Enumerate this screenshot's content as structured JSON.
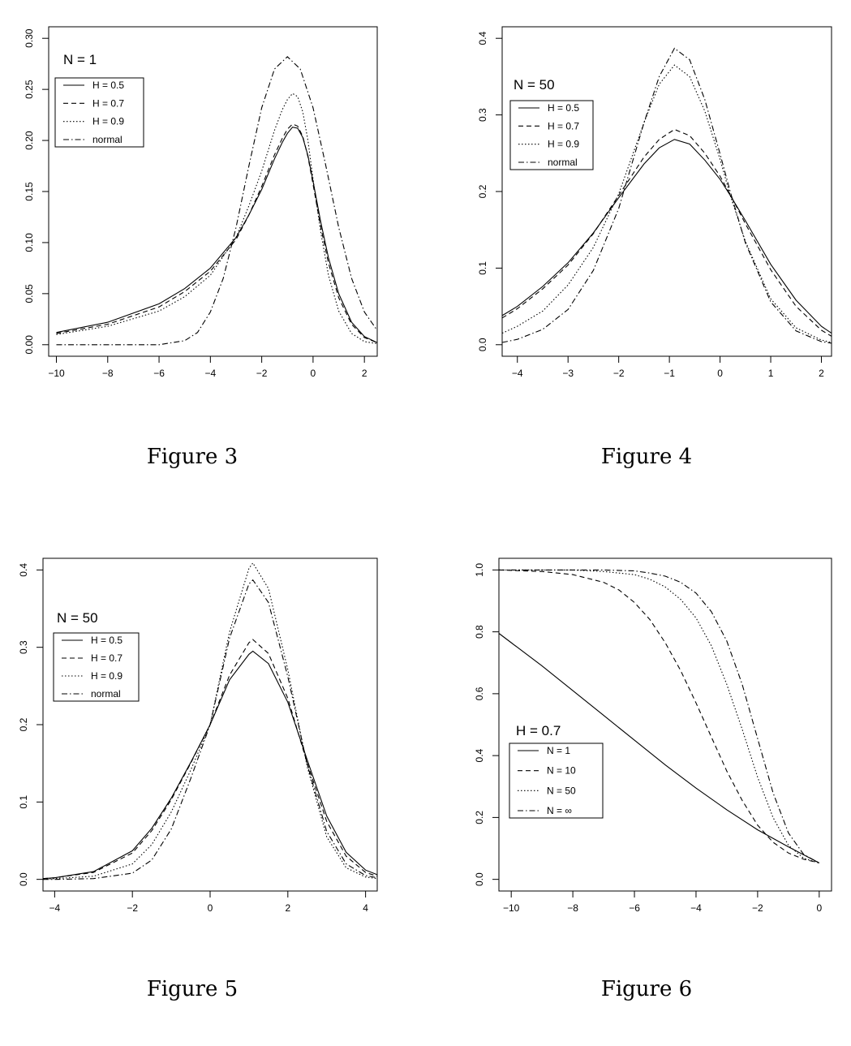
{
  "captions": [
    "Figure 3",
    "Figure 4",
    "Figure 5",
    "Figure 6"
  ],
  "chart_data": [
    {
      "type": "line",
      "title": "N = 1",
      "xlim": [
        -10.3,
        2.5
      ],
      "ylim": [
        0,
        0.3
      ],
      "xticks": [
        -10,
        -8,
        -6,
        -4,
        -2,
        0,
        2
      ],
      "yticks": [
        0.0,
        0.05,
        0.1,
        0.15,
        0.2,
        0.25,
        0.3
      ],
      "ytick_labels": [
        "0.00",
        "0.05",
        "0.10",
        "0.15",
        "0.20",
        "0.25",
        "0.30"
      ],
      "legend": "top-left",
      "series": [
        {
          "name": "H = 0.5",
          "style": "solid",
          "x": [
            -10,
            -8,
            -6,
            -5,
            -4,
            -3,
            -2.5,
            -2,
            -1.5,
            -1.2,
            -1,
            -0.8,
            -0.6,
            -0.4,
            -0.2,
            0,
            0.3,
            0.6,
            1,
            1.5,
            2,
            2.5
          ],
          "y": [
            0.012,
            0.022,
            0.04,
            0.055,
            0.075,
            0.105,
            0.127,
            0.152,
            0.182,
            0.198,
            0.207,
            0.213,
            0.212,
            0.203,
            0.185,
            0.16,
            0.12,
            0.085,
            0.05,
            0.022,
            0.008,
            0.002
          ]
        },
        {
          "name": "H = 0.7",
          "style": "dashed",
          "x": [
            -10,
            -8,
            -6,
            -5,
            -4,
            -3,
            -2.5,
            -2,
            -1.5,
            -1.2,
            -1,
            -0.8,
            -0.6,
            -0.4,
            -0.2,
            0,
            0.3,
            0.6,
            1,
            1.5,
            2,
            2.5
          ],
          "y": [
            0.011,
            0.02,
            0.037,
            0.052,
            0.072,
            0.103,
            0.127,
            0.155,
            0.186,
            0.202,
            0.211,
            0.216,
            0.214,
            0.204,
            0.184,
            0.157,
            0.115,
            0.08,
            0.046,
            0.02,
            0.007,
            0.002
          ]
        },
        {
          "name": "H = 0.9",
          "style": "dotted",
          "x": [
            -10,
            -8,
            -6,
            -5,
            -4,
            -3,
            -2.5,
            -2,
            -1.5,
            -1.2,
            -1,
            -0.8,
            -0.6,
            -0.4,
            -0.2,
            0,
            0.3,
            0.6,
            1,
            1.5,
            2,
            2.5
          ],
          "y": [
            0.01,
            0.018,
            0.033,
            0.047,
            0.068,
            0.105,
            0.136,
            0.17,
            0.21,
            0.23,
            0.24,
            0.246,
            0.243,
            0.228,
            0.2,
            0.162,
            0.11,
            0.068,
            0.033,
            0.011,
            0.003,
            0.001
          ]
        },
        {
          "name": "normal",
          "style": "dotdash",
          "x": [
            -10,
            -7,
            -6,
            -5,
            -4.5,
            -4,
            -3.5,
            -3,
            -2.5,
            -2,
            -1.5,
            -1,
            -0.5,
            0,
            0.5,
            1,
            1.5,
            2,
            2.5
          ],
          "y": [
            0.0,
            0.0,
            0.0,
            0.004,
            0.012,
            0.032,
            0.065,
            0.115,
            0.175,
            0.232,
            0.27,
            0.282,
            0.27,
            0.232,
            0.175,
            0.115,
            0.065,
            0.032,
            0.014
          ]
        }
      ]
    },
    {
      "type": "line",
      "title": "N = 50",
      "xlim": [
        -4.3,
        2.2
      ],
      "ylim": [
        0,
        0.4
      ],
      "xticks": [
        -4,
        -3,
        -2,
        -1,
        0,
        1,
        2
      ],
      "yticks": [
        0.0,
        0.1,
        0.2,
        0.3,
        0.4
      ],
      "ytick_labels": [
        "0.0",
        "0.1",
        "0.2",
        "0.3",
        "0.4"
      ],
      "legend": "top-left",
      "series": [
        {
          "name": "H = 0.5",
          "style": "solid",
          "x": [
            -4.3,
            -4,
            -3.5,
            -3,
            -2.5,
            -2,
            -1.5,
            -1.2,
            -0.9,
            -0.6,
            -0.3,
            0,
            0.2,
            0.5,
            1,
            1.5,
            2,
            2.2
          ],
          "y": [
            0.038,
            0.05,
            0.076,
            0.107,
            0.146,
            0.192,
            0.236,
            0.257,
            0.268,
            0.262,
            0.241,
            0.216,
            0.195,
            0.162,
            0.105,
            0.058,
            0.024,
            0.015
          ]
        },
        {
          "name": "H = 0.7",
          "style": "dashed",
          "x": [
            -4.3,
            -4,
            -3.5,
            -3,
            -2.5,
            -2,
            -1.5,
            -1.2,
            -0.9,
            -0.6,
            -0.3,
            0,
            0.2,
            0.5,
            1,
            1.5,
            2,
            2.2
          ],
          "y": [
            0.035,
            0.047,
            0.073,
            0.104,
            0.145,
            0.195,
            0.245,
            0.268,
            0.281,
            0.273,
            0.25,
            0.22,
            0.196,
            0.158,
            0.098,
            0.05,
            0.019,
            0.011
          ]
        },
        {
          "name": "H = 0.9",
          "style": "dotted",
          "x": [
            -4.3,
            -4,
            -3.5,
            -3,
            -2.5,
            -2,
            -1.5,
            -1.2,
            -0.9,
            -0.6,
            -0.3,
            0,
            0.2,
            0.5,
            1,
            1.5,
            2,
            2.2
          ],
          "y": [
            0.015,
            0.024,
            0.044,
            0.078,
            0.127,
            0.197,
            0.29,
            0.34,
            0.365,
            0.35,
            0.305,
            0.242,
            0.195,
            0.135,
            0.06,
            0.022,
            0.006,
            0.003
          ]
        },
        {
          "name": "normal",
          "style": "dotdash",
          "x": [
            -4.3,
            -4,
            -3.5,
            -3,
            -2.5,
            -2,
            -1.5,
            -1.2,
            -0.9,
            -0.6,
            -0.3,
            0,
            0.2,
            0.5,
            1,
            1.5,
            2,
            2.2
          ],
          "y": [
            0.003,
            0.007,
            0.02,
            0.046,
            0.097,
            0.178,
            0.29,
            0.35,
            0.387,
            0.372,
            0.32,
            0.249,
            0.2,
            0.133,
            0.056,
            0.018,
            0.004,
            0.002
          ]
        }
      ]
    },
    {
      "type": "line",
      "title": "N = 50",
      "xlim": [
        -4.3,
        4.3
      ],
      "ylim": [
        0,
        0.4
      ],
      "xticks": [
        -4,
        -2,
        0,
        2,
        4
      ],
      "yticks": [
        0.0,
        0.1,
        0.2,
        0.3,
        0.4
      ],
      "ytick_labels": [
        "0.0",
        "0.1",
        "0.2",
        "0.3",
        "0.4"
      ],
      "legend": "top-left",
      "series": [
        {
          "name": "H = 0.5",
          "style": "solid",
          "x": [
            -4.3,
            -4,
            -3,
            -2,
            -1.5,
            -1,
            -0.5,
            0,
            0.5,
            1,
            1.1,
            1.5,
            2,
            2.5,
            3,
            3.5,
            4,
            4.3
          ],
          "y": [
            0.001,
            0.002,
            0.01,
            0.037,
            0.066,
            0.105,
            0.151,
            0.2,
            0.258,
            0.291,
            0.295,
            0.279,
            0.229,
            0.154,
            0.082,
            0.035,
            0.012,
            0.006
          ]
        },
        {
          "name": "H = 0.7",
          "style": "dashed",
          "x": [
            -4.3,
            -4,
            -3,
            -2,
            -1.5,
            -1,
            -0.5,
            0,
            0.5,
            1,
            1.1,
            1.5,
            2,
            2.5,
            3,
            3.5,
            4,
            4.3
          ],
          "y": [
            0.001,
            0.002,
            0.009,
            0.034,
            0.063,
            0.103,
            0.15,
            0.2,
            0.264,
            0.306,
            0.31,
            0.292,
            0.234,
            0.15,
            0.075,
            0.03,
            0.009,
            0.004
          ]
        },
        {
          "name": "H = 0.9",
          "style": "dotted",
          "x": [
            -4.3,
            -4,
            -3,
            -2,
            -1.5,
            -1,
            -0.5,
            0,
            0.5,
            1,
            1.1,
            1.5,
            2,
            2.5,
            3,
            3.5,
            4,
            4.3
          ],
          "y": [
            0.0,
            0.001,
            0.004,
            0.02,
            0.045,
            0.087,
            0.141,
            0.2,
            0.32,
            0.402,
            0.409,
            0.376,
            0.271,
            0.145,
            0.055,
            0.015,
            0.003,
            0.001
          ]
        },
        {
          "name": "normal",
          "style": "dotdash",
          "x": [
            -4.3,
            -4,
            -3,
            -2,
            -1.5,
            -1,
            -0.5,
            0,
            0.5,
            1,
            1.1,
            1.5,
            2,
            2.5,
            3,
            3.5,
            4,
            4.3
          ],
          "y": [
            0.0,
            0.0,
            0.001,
            0.008,
            0.025,
            0.065,
            0.13,
            0.2,
            0.312,
            0.382,
            0.387,
            0.358,
            0.262,
            0.148,
            0.062,
            0.02,
            0.005,
            0.002
          ]
        }
      ]
    },
    {
      "type": "line",
      "title": "H = 0.7",
      "xlim": [
        -10.4,
        0.4
      ],
      "ylim": [
        0,
        1.0
      ],
      "xticks": [
        -10,
        -8,
        -6,
        -4,
        -2,
        0
      ],
      "yticks": [
        0.0,
        0.2,
        0.4,
        0.6,
        0.8,
        1.0
      ],
      "ytick_labels": [
        "0.0",
        "0.2",
        "0.4",
        "0.6",
        "0.8",
        "1.0"
      ],
      "legend": "bottom-left",
      "series": [
        {
          "name": "N = 1",
          "style": "solid",
          "x": [
            -10.4,
            -10,
            -9,
            -8,
            -7,
            -6,
            -5,
            -4,
            -3,
            -2,
            -1,
            0
          ],
          "y": [
            0.795,
            0.765,
            0.69,
            0.61,
            0.53,
            0.45,
            0.37,
            0.295,
            0.225,
            0.16,
            0.105,
            0.053
          ]
        },
        {
          "name": "N = 10",
          "style": "dashed",
          "x": [
            -10.4,
            -9,
            -8,
            -7,
            -6.5,
            -6,
            -5.5,
            -5,
            -4.5,
            -4,
            -3.5,
            -3,
            -2.5,
            -2,
            -1.5,
            -1,
            -0.5,
            0
          ],
          "y": [
            1.0,
            0.995,
            0.985,
            0.96,
            0.935,
            0.895,
            0.84,
            0.765,
            0.675,
            0.57,
            0.46,
            0.35,
            0.255,
            0.175,
            0.12,
            0.085,
            0.065,
            0.053
          ]
        },
        {
          "name": "N = 50",
          "style": "dotted",
          "x": [
            -10.4,
            -8,
            -7,
            -6,
            -5.5,
            -5,
            -4.5,
            -4,
            -3.5,
            -3,
            -2.5,
            -2,
            -1.5,
            -1,
            -0.5,
            0
          ],
          "y": [
            1.0,
            1.0,
            0.995,
            0.985,
            0.97,
            0.945,
            0.905,
            0.845,
            0.755,
            0.63,
            0.485,
            0.33,
            0.2,
            0.11,
            0.068,
            0.053
          ]
        },
        {
          "name": "N = ∞",
          "style": "dotdash",
          "x": [
            -10.4,
            -7,
            -6,
            -5.5,
            -5,
            -4.5,
            -4,
            -3.5,
            -3,
            -2.5,
            -2,
            -1.5,
            -1,
            -0.5,
            0
          ],
          "y": [
            1.0,
            1.0,
            0.997,
            0.99,
            0.98,
            0.96,
            0.925,
            0.865,
            0.77,
            0.63,
            0.455,
            0.28,
            0.15,
            0.08,
            0.053
          ]
        }
      ]
    }
  ]
}
